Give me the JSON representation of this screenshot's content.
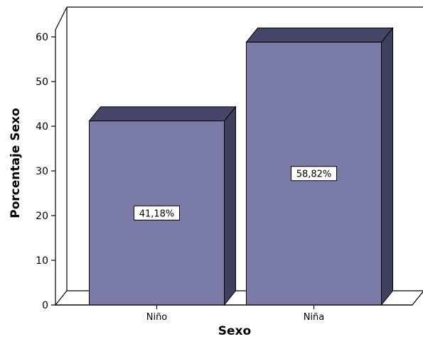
{
  "chart_data": {
    "type": "bar",
    "categories": [
      "Niño",
      "Niña"
    ],
    "values": [
      41.18,
      58.82
    ],
    "data_labels": [
      "41,18%",
      "58,82%"
    ],
    "xlabel": "Sexo",
    "ylabel": "Porcentaje Sexo",
    "ylim": [
      0,
      60
    ],
    "yticks": [
      "0",
      "10",
      "20",
      "30",
      "40",
      "50",
      "60"
    ],
    "grid": false,
    "style": "3d",
    "colors": {
      "bar_front": "#7b7ba8",
      "bar_side": "#3f3f5e",
      "bar_top": "#45456a",
      "outline": "#000000"
    }
  }
}
